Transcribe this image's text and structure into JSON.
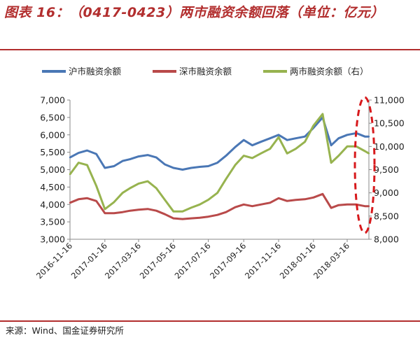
{
  "header": {
    "title": "图表 16：（0417-0423）两市融资余额回落（单位：亿元）"
  },
  "footer": {
    "source": "来源：Wind、国金证券研究所"
  },
  "chart_data": {
    "type": "line",
    "title": "图表 16：（0417-0423）两市融资余额回落（单位：亿元）",
    "x_ticks": [
      "2016-11-16",
      "2017-01-16",
      "2017-03-16",
      "2017-05-16",
      "2017-07-16",
      "2017-09-16",
      "2017-11-16",
      "2018-01-16",
      "2018-03-16"
    ],
    "x": [
      "2016-11-16",
      "2016-12-01",
      "2016-12-16",
      "2017-01-01",
      "2017-01-16",
      "2017-02-01",
      "2017-02-16",
      "2017-03-01",
      "2017-03-16",
      "2017-04-01",
      "2017-04-16",
      "2017-05-01",
      "2017-05-16",
      "2017-06-01",
      "2017-06-16",
      "2017-07-01",
      "2017-07-16",
      "2017-08-01",
      "2017-08-16",
      "2017-09-01",
      "2017-09-16",
      "2017-10-01",
      "2017-10-16",
      "2017-11-01",
      "2017-11-16",
      "2017-12-01",
      "2017-12-16",
      "2018-01-01",
      "2018-01-16",
      "2018-02-01",
      "2018-02-16",
      "2018-03-01",
      "2018-03-16",
      "2018-04-01",
      "2018-04-16",
      "2018-04-23"
    ],
    "left_axis": {
      "ticks": [
        "3,000",
        "3,500",
        "4,000",
        "4,500",
        "5,000",
        "5,500",
        "6,000",
        "6,500",
        "7,000"
      ],
      "min": 3000,
      "max": 7000
    },
    "right_axis": {
      "ticks": [
        "8,000",
        "8,500",
        "9,000",
        "9,500",
        "10,000",
        "10,500",
        "11,000"
      ],
      "min": 8000,
      "max": 11000
    },
    "grid": false,
    "legend_position": "top",
    "series": [
      {
        "name": "沪市融资余额",
        "axis": "left",
        "color": "#4a77b5",
        "values": [
          5350,
          5480,
          5550,
          5450,
          5050,
          5100,
          5250,
          5300,
          5380,
          5420,
          5350,
          5150,
          5050,
          5000,
          5050,
          5080,
          5100,
          5200,
          5400,
          5650,
          5850,
          5700,
          5800,
          5900,
          6000,
          5850,
          5900,
          5950,
          6200,
          6500,
          5700,
          5900,
          6000,
          6050,
          5950,
          5950
        ]
      },
      {
        "name": "深市融资余额",
        "axis": "left",
        "color": "#b94a4a",
        "values": [
          4050,
          4150,
          4180,
          4100,
          3750,
          3750,
          3780,
          3820,
          3850,
          3870,
          3820,
          3720,
          3600,
          3580,
          3600,
          3620,
          3650,
          3700,
          3780,
          3920,
          4000,
          3950,
          4000,
          4050,
          4180,
          4100,
          4130,
          4150,
          4200,
          4300,
          3900,
          3980,
          4000,
          4000,
          3950,
          3950
        ]
      },
      {
        "name": "两市融资余额（右）",
        "axis": "right",
        "color": "#97b34f",
        "values": [
          9400,
          9650,
          9600,
          9150,
          8650,
          8800,
          9000,
          9100,
          9200,
          9250,
          9100,
          8850,
          8600,
          8600,
          8680,
          8750,
          8850,
          9000,
          9300,
          9600,
          9800,
          9750,
          9850,
          9950,
          10200,
          9850,
          9950,
          10100,
          10450,
          10700,
          9650,
          9800,
          10000,
          10000,
          9900,
          9850
        ]
      }
    ],
    "annotations": [
      "red dashed ellipse highlighting the most recent period (April 2018)"
    ]
  }
}
